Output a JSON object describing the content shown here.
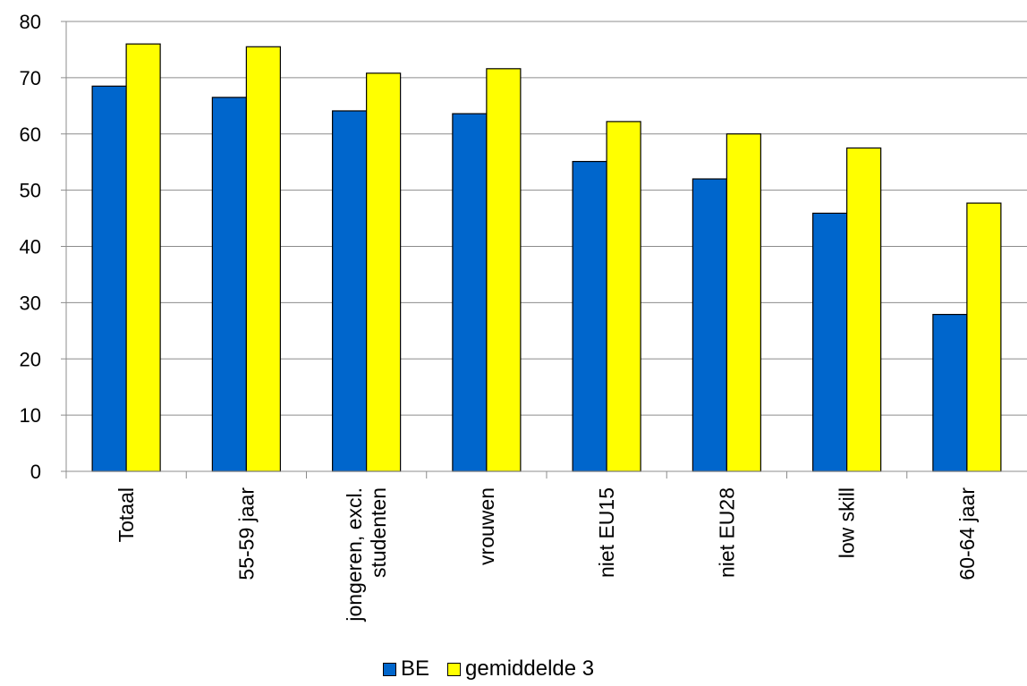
{
  "chart_data": {
    "type": "bar",
    "title": "",
    "xlabel": "",
    "ylabel": "",
    "ylim": [
      0,
      80
    ],
    "yticks": [
      0,
      10,
      20,
      30,
      40,
      50,
      60,
      70,
      80
    ],
    "grid": true,
    "legend_position": "bottom",
    "categories": [
      [
        "Totaal"
      ],
      [
        "55-59 jaar"
      ],
      [
        "jongeren, excl.",
        "studenten"
      ],
      [
        "vrouwen"
      ],
      [
        "niet EU15"
      ],
      [
        "niet EU28"
      ],
      [
        "low skill"
      ],
      [
        "60-64 jaar"
      ]
    ],
    "series": [
      {
        "name": "BE",
        "color": "#0066cc",
        "values": [
          68.5,
          66.5,
          64.1,
          63.6,
          55.1,
          52.0,
          45.9,
          27.9
        ]
      },
      {
        "name": "gemiddelde 3",
        "color": "#ffff00",
        "values": [
          76.0,
          75.5,
          70.8,
          71.6,
          62.2,
          60.0,
          57.5,
          47.7
        ]
      }
    ]
  }
}
